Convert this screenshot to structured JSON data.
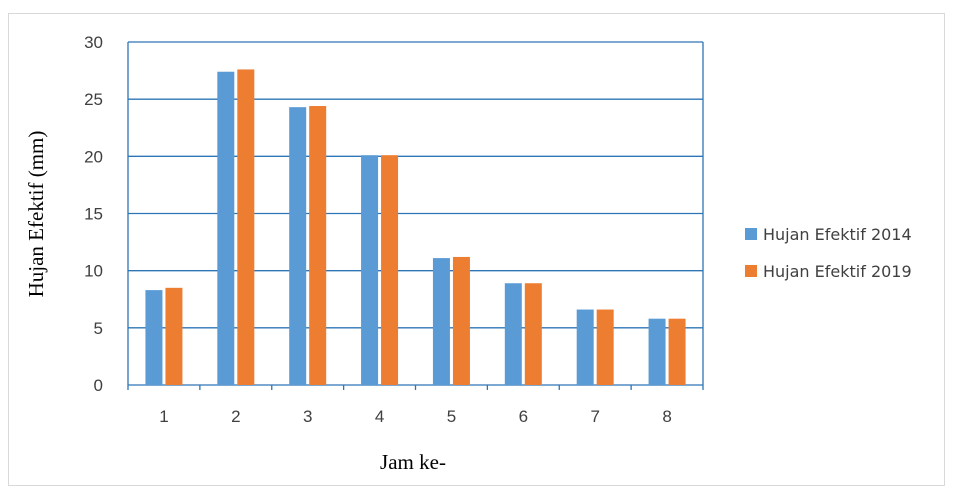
{
  "chart_data": {
    "type": "bar",
    "categories": [
      "1",
      "2",
      "3",
      "4",
      "5",
      "6",
      "7",
      "8"
    ],
    "series": [
      {
        "name": "Hujan Efektif 2014",
        "color": "#5b9bd5",
        "values": [
          8.3,
          27.4,
          24.3,
          20.1,
          11.1,
          8.9,
          6.6,
          5.8
        ]
      },
      {
        "name": "Hujan Efektif 2019",
        "color": "#ed7d31",
        "values": [
          8.5,
          27.6,
          24.4,
          20.1,
          11.2,
          8.9,
          6.6,
          5.8
        ]
      }
    ],
    "xlabel": "Jam ke-",
    "ylabel": "Hujan Efektif (mm)",
    "ylim": [
      0,
      30
    ],
    "yticks": [
      "0",
      "5",
      "10",
      "15",
      "20",
      "25",
      "30"
    ],
    "grid": true,
    "legend_position": "right",
    "axis_color": "#2e75b6"
  }
}
